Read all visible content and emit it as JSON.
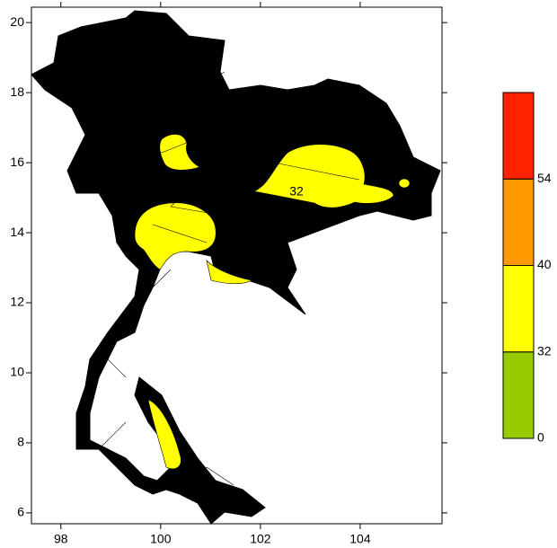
{
  "map": {
    "xlim": [
      97.41,
      105.64
    ],
    "ylim": [
      5.69,
      20.44
    ],
    "xticks": [
      98,
      100,
      102,
      104
    ],
    "yticks": [
      6,
      8,
      10,
      12,
      14,
      16,
      18,
      20
    ],
    "contour_labels": [
      32
    ]
  },
  "colorbar": {
    "levels": [
      0,
      32,
      40,
      54
    ],
    "colors": [
      "#99cc00",
      "#ffff00",
      "#ff9900",
      "#ff2200"
    ]
  }
}
